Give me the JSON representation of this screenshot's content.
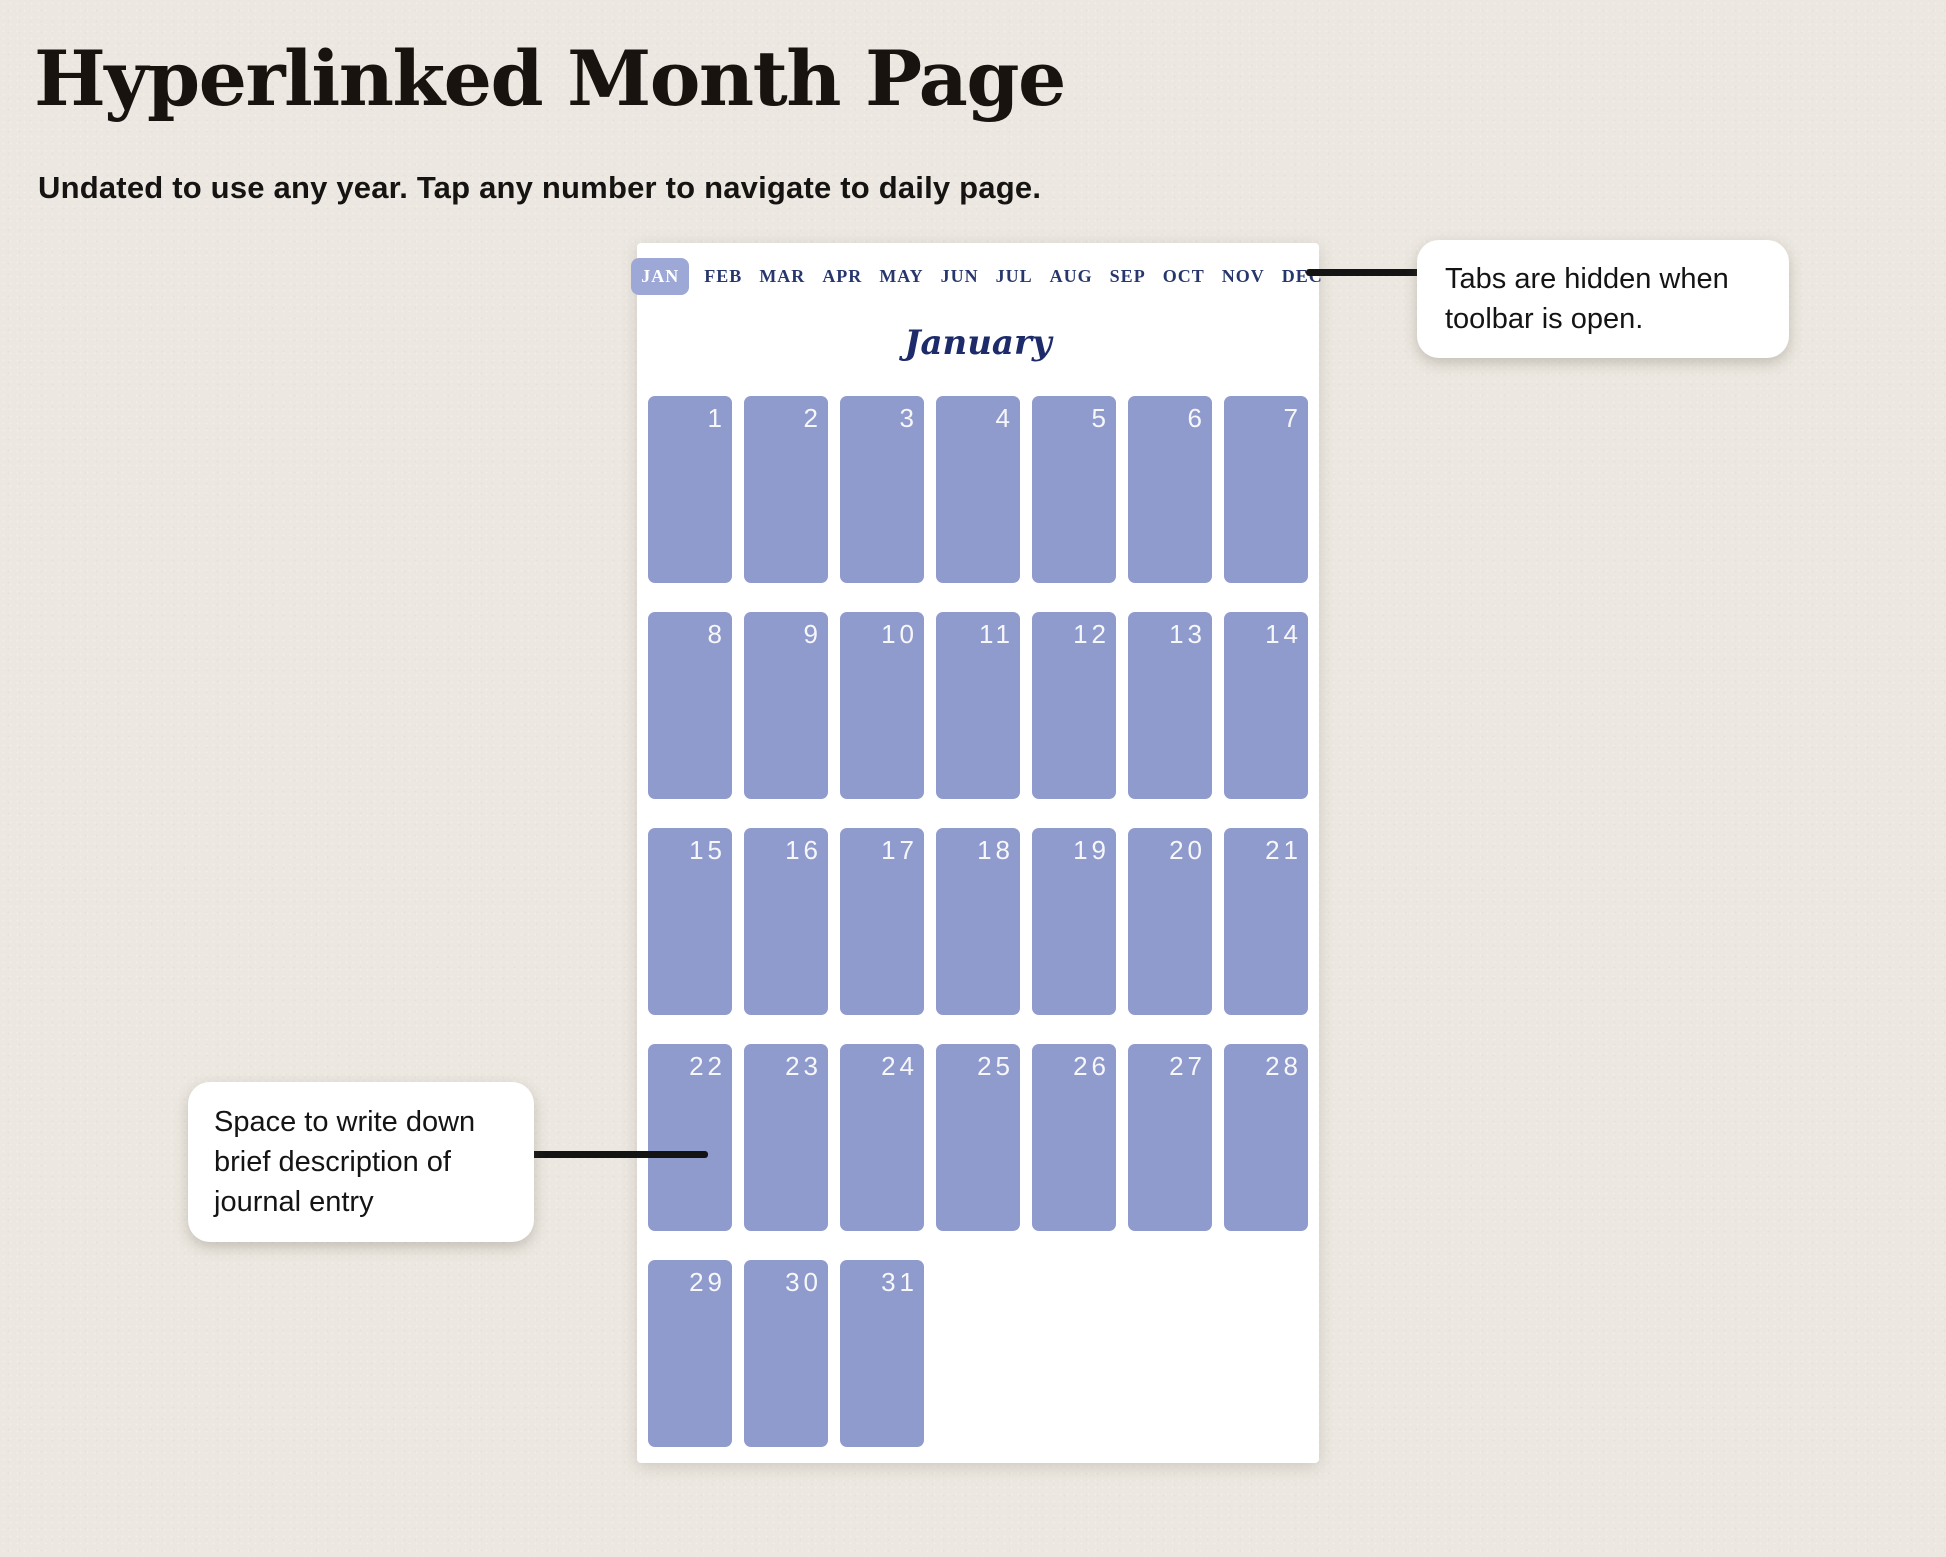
{
  "header": {
    "title": "Hyperlinked Month Page",
    "subtitle": "Undated to use any year. Tap any number to navigate to daily page."
  },
  "planner": {
    "month_title": "January",
    "tabs": [
      {
        "label": "JAN",
        "selected": true
      },
      {
        "label": "FEB",
        "selected": false
      },
      {
        "label": "MAR",
        "selected": false
      },
      {
        "label": "APR",
        "selected": false
      },
      {
        "label": "MAY",
        "selected": false
      },
      {
        "label": "JUN",
        "selected": false
      },
      {
        "label": "JUL",
        "selected": false
      },
      {
        "label": "AUG",
        "selected": false
      },
      {
        "label": "SEP",
        "selected": false
      },
      {
        "label": "OCT",
        "selected": false
      },
      {
        "label": "NOV",
        "selected": false
      },
      {
        "label": "DEC",
        "selected": false
      }
    ],
    "days": [
      1,
      2,
      3,
      4,
      5,
      6,
      7,
      8,
      9,
      10,
      11,
      12,
      13,
      14,
      15,
      16,
      17,
      18,
      19,
      20,
      21,
      22,
      23,
      24,
      25,
      26,
      27,
      28,
      29,
      30,
      31
    ]
  },
  "callouts": {
    "tabs_hidden_note": "Tabs are hidden when toolbar is open.",
    "journal_space_note": "Space to write down brief description of journal entry"
  },
  "colors": {
    "background": "#ece8e1",
    "page_background": "#ffffff",
    "day_cell": "#8f9acd",
    "selected_tab_background": "#9ea8d6",
    "tab_text": "#27376d",
    "month_title_text": "#1d2b6b",
    "day_number_text": "#f7f7fa",
    "connector_line": "#141414"
  }
}
